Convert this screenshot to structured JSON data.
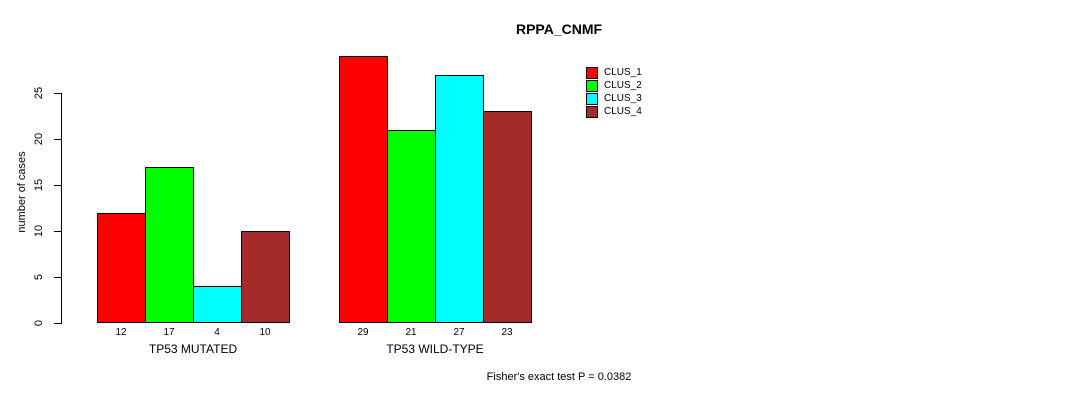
{
  "title": "RPPA_CNMF",
  "ylabel": "number of cases",
  "footer": "Fisher's exact test P = 0.0382",
  "colors": {
    "clus1": "#FF0000",
    "clus2": "#00FF00",
    "clus3": "#00FFFF",
    "clus4": "#A52A2A",
    "axis": "#000000",
    "background": "#FFFFFF"
  },
  "legend": {
    "items": [
      {
        "label": "CLUS_1",
        "color": "#FF0000"
      },
      {
        "label": "CLUS_2",
        "color": "#00FF00"
      },
      {
        "label": "CLUS_3",
        "color": "#00FFFF"
      },
      {
        "label": "CLUS_4",
        "color": "#A52A2A"
      }
    ]
  },
  "chart_data": {
    "type": "bar",
    "title": "RPPA_CNMF",
    "xlabel": "",
    "ylabel": "number of cases",
    "ylim": [
      0,
      29
    ],
    "yticks": [
      0,
      5,
      10,
      15,
      20,
      25
    ],
    "grid": false,
    "legend_position": "top-right",
    "categories": [
      "TP53 MUTATED",
      "TP53 WILD-TYPE"
    ],
    "series": [
      {
        "name": "CLUS_1",
        "color": "#FF0000",
        "values": [
          12,
          29
        ]
      },
      {
        "name": "CLUS_2",
        "color": "#00FF00",
        "values": [
          17,
          21
        ]
      },
      {
        "name": "CLUS_3",
        "color": "#00FFFF",
        "values": [
          4,
          27
        ]
      },
      {
        "name": "CLUS_4",
        "color": "#A52A2A",
        "values": [
          10,
          23
        ]
      }
    ],
    "bar_value_labels": [
      [
        12,
        17,
        4,
        10
      ],
      [
        29,
        21,
        27,
        23
      ]
    ],
    "annotation": "Fisher's exact test P = 0.0382"
  }
}
